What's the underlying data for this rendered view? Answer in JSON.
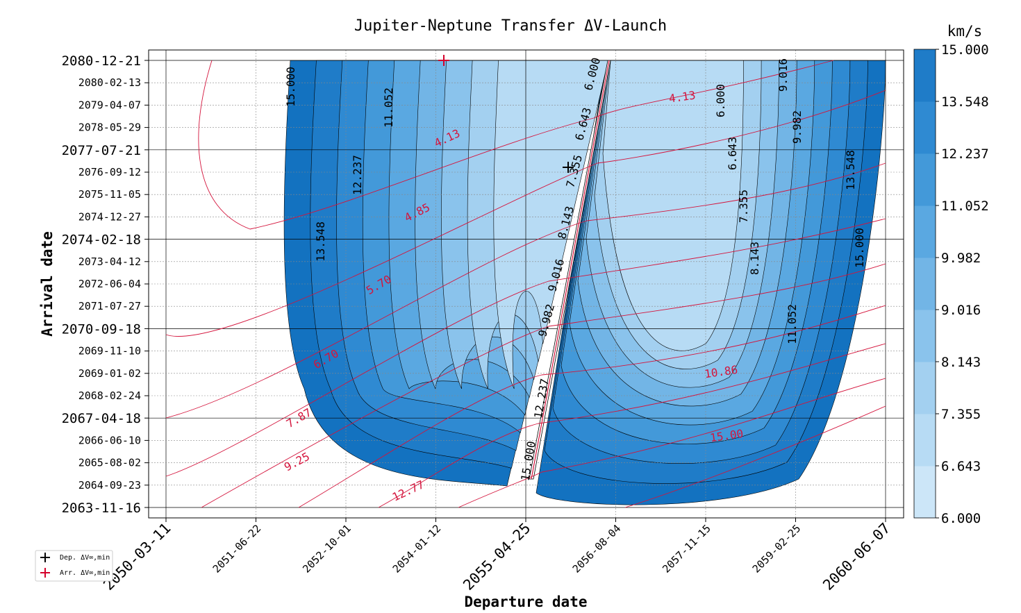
{
  "chart_data": {
    "type": "contour",
    "title": "Jupiter-Neptune Transfer ΔV-Launch",
    "xlabel": "Departure date",
    "ylabel": "Arrival date",
    "x_ticks": [
      {
        "label": "2050-03-11",
        "major": true
      },
      {
        "label": "2051-06-22",
        "major": false
      },
      {
        "label": "2052-10-01",
        "major": false
      },
      {
        "label": "2054-01-12",
        "major": false
      },
      {
        "label": "2055-04-25",
        "major": true
      },
      {
        "label": "2056-08-04",
        "major": false
      },
      {
        "label": "2057-11-15",
        "major": false
      },
      {
        "label": "2059-02-25",
        "major": false
      },
      {
        "label": "2060-06-07",
        "major": true
      }
    ],
    "y_ticks": [
      {
        "label": "2063-11-16",
        "major": true
      },
      {
        "label": "2064-09-23",
        "major": false
      },
      {
        "label": "2065-08-02",
        "major": false
      },
      {
        "label": "2066-06-10",
        "major": false
      },
      {
        "label": "2067-04-18",
        "major": true
      },
      {
        "label": "2068-02-24",
        "major": false
      },
      {
        "label": "2069-01-02",
        "major": false
      },
      {
        "label": "2069-11-10",
        "major": false
      },
      {
        "label": "2070-09-18",
        "major": true
      },
      {
        "label": "2071-07-27",
        "major": false
      },
      {
        "label": "2072-06-04",
        "major": false
      },
      {
        "label": "2073-04-12",
        "major": false
      },
      {
        "label": "2074-02-18",
        "major": true
      },
      {
        "label": "2074-12-27",
        "major": false
      },
      {
        "label": "2075-11-05",
        "major": false
      },
      {
        "label": "2076-09-12",
        "major": false
      },
      {
        "label": "2077-07-21",
        "major": true
      },
      {
        "label": "2078-05-29",
        "major": false
      },
      {
        "label": "2079-04-07",
        "major": false
      },
      {
        "label": "2080-02-13",
        "major": false
      },
      {
        "label": "2080-12-21",
        "major": true
      }
    ],
    "colorbar": {
      "unit": "km/s",
      "levels": [
        "6.000",
        "6.643",
        "7.355",
        "8.143",
        "9.016",
        "9.982",
        "11.052",
        "12.237",
        "13.548",
        "15.000"
      ],
      "colors": [
        "#cce6f8",
        "#b7dbf4",
        "#a3d0f0",
        "#8ac3ec",
        "#72b5e6",
        "#5aa8e1",
        "#4399d9",
        "#2f8ad2",
        "#1f7cc8",
        "#1372c0"
      ]
    },
    "dv_contour_labels": [
      "15.000",
      "11.052",
      "12.237",
      "13.548",
      "9.982",
      "9.016",
      "8.143",
      "7.355",
      "6.643",
      "6.000",
      "15.000",
      "6.000",
      "6.643",
      "7.355",
      "8.143",
      "9.016",
      "9.982",
      "11.052",
      "13.548",
      "15.000",
      "12.237"
    ],
    "tof_contour_labels": [
      "4.13",
      "4.13",
      "4.85",
      "5.70",
      "6.70",
      "7.87",
      "9.25",
      "12.77",
      "10.86",
      "15.00"
    ],
    "legend": [
      {
        "label": "Dep. ΔV∞,min",
        "marker": "+",
        "color": "#000000"
      },
      {
        "label": "Arr. ΔV∞,min",
        "marker": "+",
        "color": "#d4002a"
      }
    ],
    "colors": {
      "tof_lines": "#d4143c",
      "contour_lines": "#000000"
    }
  }
}
